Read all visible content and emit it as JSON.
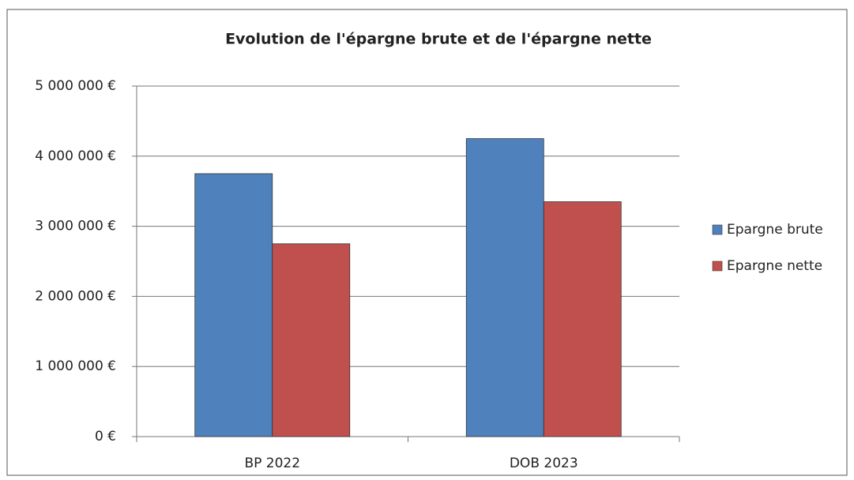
{
  "chart_data": {
    "type": "bar",
    "title": "Evolution de l'épargne brute et de l'épargne nette",
    "categories": [
      "BP 2022",
      "DOB 2023"
    ],
    "series": [
      {
        "name": "Epargne brute",
        "color": "#4f81bd",
        "values": [
          3750000,
          4250000
        ]
      },
      {
        "name": "Epargne nette",
        "color": "#c0504d",
        "values": [
          2750000,
          3350000
        ]
      }
    ],
    "ylim": [
      0,
      5000000
    ],
    "yticks": [
      {
        "value": 0,
        "label": "0 €"
      },
      {
        "value": 1000000,
        "label": "1 000 000 €"
      },
      {
        "value": 2000000,
        "label": "2 000 000 €"
      },
      {
        "value": 3000000,
        "label": "3 000 000 €"
      },
      {
        "value": 4000000,
        "label": "4 000 000 €"
      },
      {
        "value": 5000000,
        "label": "5 000 000 €"
      }
    ],
    "grid": true,
    "legend": "right"
  }
}
